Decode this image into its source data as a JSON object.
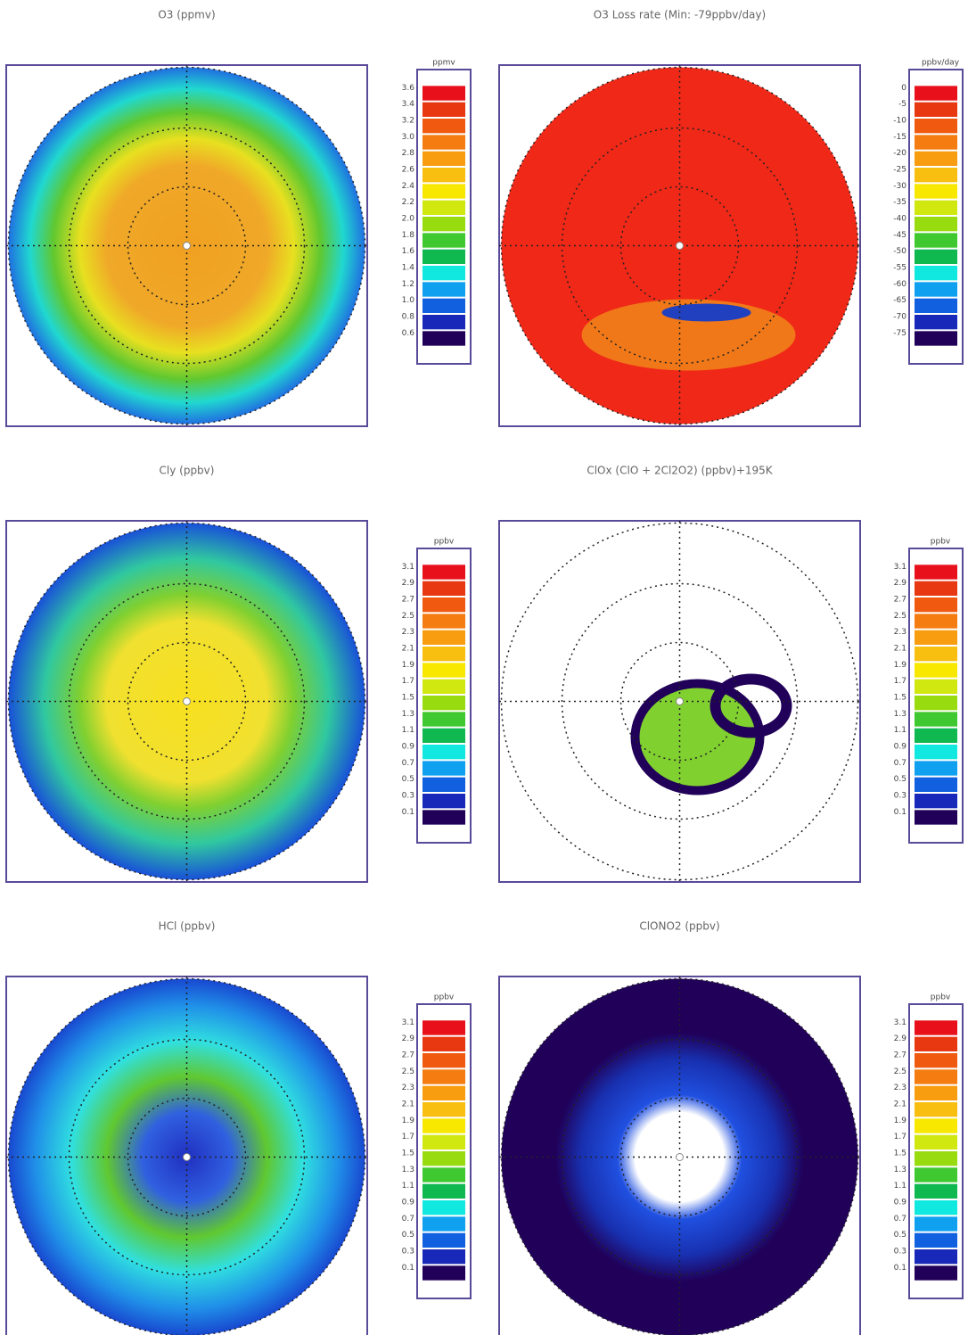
{
  "panels": [
    {
      "title": "O3 (ppmv)",
      "unit": "ppmv",
      "ticks": [
        "3.6",
        "3.4",
        "3.2",
        "3.0",
        "2.8",
        "2.6",
        "2.4",
        "2.2",
        "2.0",
        "1.8",
        "1.6",
        "1.4",
        "1.2",
        "1.0",
        "0.8",
        "0.6"
      ]
    },
    {
      "title": "O3 Loss rate (Min: -79ppbv/day)",
      "unit": "ppbv/day",
      "ticks": [
        "0",
        "-5",
        "-10",
        "-15",
        "-20",
        "-25",
        "-30",
        "-35",
        "-40",
        "-45",
        "-50",
        "-55",
        "-60",
        "-65",
        "-70",
        "-75"
      ]
    },
    {
      "title": "Cly (ppbv)",
      "unit": "ppbv",
      "ticks": [
        "3.1",
        "2.9",
        "2.7",
        "2.5",
        "2.3",
        "2.1",
        "1.9",
        "1.7",
        "1.5",
        "1.3",
        "1.1",
        "0.9",
        "0.7",
        "0.5",
        "0.3",
        "0.1"
      ]
    },
    {
      "title": "ClOx (ClO + 2Cl2O2) (ppbv)+195K",
      "unit": "ppbv",
      "ticks": [
        "3.1",
        "2.9",
        "2.7",
        "2.5",
        "2.3",
        "2.1",
        "1.9",
        "1.7",
        "1.5",
        "1.3",
        "1.1",
        "0.9",
        "0.7",
        "0.5",
        "0.3",
        "0.1"
      ]
    },
    {
      "title": "HCl (ppbv)",
      "unit": "ppbv",
      "ticks": [
        "3.1",
        "2.9",
        "2.7",
        "2.5",
        "2.3",
        "2.1",
        "1.9",
        "1.7",
        "1.5",
        "1.3",
        "1.1",
        "0.9",
        "0.7",
        "0.5",
        "0.3",
        "0.1"
      ]
    },
    {
      "title": "ClONO2 (ppbv)",
      "unit": "ppbv",
      "ticks": [
        "3.1",
        "2.9",
        "2.7",
        "2.5",
        "2.3",
        "2.1",
        "1.9",
        "1.7",
        "1.5",
        "1.3",
        "1.1",
        "0.9",
        "0.7",
        "0.5",
        "0.3",
        "0.1"
      ]
    }
  ]
}
